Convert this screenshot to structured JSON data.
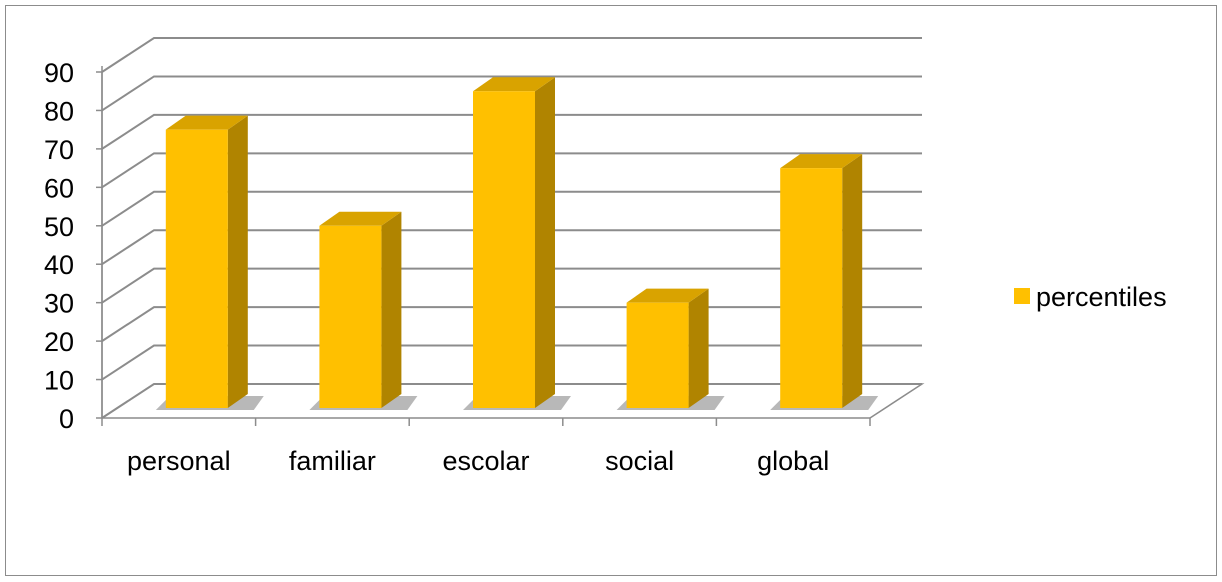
{
  "chart_data": {
    "type": "bar",
    "style": "3d-column",
    "categories": [
      "personal",
      "familiar",
      "escolar",
      "social",
      "global"
    ],
    "series": [
      {
        "name": "percentiles",
        "values": [
          75,
          50,
          85,
          30,
          65
        ]
      }
    ],
    "ylim": [
      0,
      90
    ],
    "yticks": [
      "0",
      "10",
      "20",
      "30",
      "40",
      "50",
      "60",
      "70",
      "80",
      "90"
    ],
    "grid": true,
    "legend": "right",
    "colors": {
      "bar_front": "#ffc000",
      "bar_side": "#b08400",
      "bar_top": "#d9a300",
      "grid": "#8c8c8c",
      "text": "#000000"
    }
  }
}
